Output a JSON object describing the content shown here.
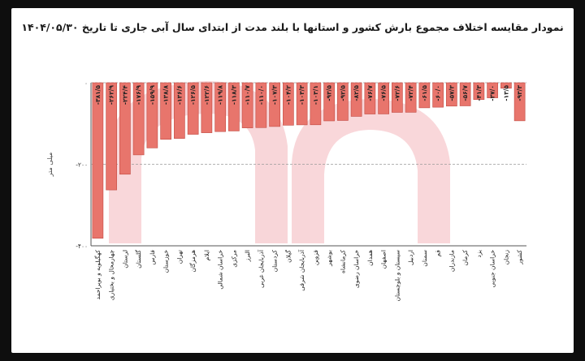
{
  "chart_data": {
    "type": "bar",
    "title": "نمودار مقایسه اختلاف مجموع بارش کشور و استانها با بلند مدت از ابتدای سال آبی جاری تا تاریخ ۱۴۰۴/۰۵/۳۰",
    "ylabel": "میلی متر",
    "ylim": [
      -400,
      0
    ],
    "yticks": [
      0,
      -200,
      -400
    ],
    "ytick_labels": [
      "۰",
      "-۲۰۰",
      "-۴۰۰"
    ],
    "categories": [
      "کهگیلویه و بویراحمد",
      "چهارمحال و بختیاری",
      "لرستان",
      "گلستان",
      "فارس",
      "خوزستان",
      "تهران",
      "هرمزگان",
      "ایلام",
      "خراسان شمالی",
      "مرکزی",
      "البرز",
      "آذربایجان غربی",
      "کردستان",
      "گیلان",
      "آذربایجان شرقی",
      "قزوین",
      "بوشهر",
      "کرمانشاه",
      "خراسان رضوی",
      "همدان",
      "اصفهان",
      "سیستان و بلوچستان",
      "اردبیل",
      "سمنان",
      "قم",
      "مازندران",
      "کرمان",
      "یزد",
      "خراسان جنوبی",
      "زنجان",
      "کشور"
    ],
    "values": [
      -381.5,
      -262.9,
      -224.4,
      -176.9,
      -159.9,
      -138.8,
      -136.6,
      -126.5,
      -122.6,
      -119.8,
      -118.3,
      -110.7,
      -110.0,
      -107.3,
      -104.2,
      -103.3,
      -103.1,
      -93.5,
      -92.5,
      -82.5,
      -76.7,
      -76.5,
      -72.6,
      -72.4,
      -61.5,
      -60.0,
      -57.3,
      -56.7,
      -41.3,
      -37.0,
      -13.5,
      -93.3
    ],
    "value_labels": [
      "-۳۸۱/۵",
      "-۲۶۲/۹",
      "-۲۲۴/۴",
      "-۱۷۶/۹",
      "-۱۵۹/۹",
      "-۱۳۸/۸",
      "-۱۳۶/۶",
      "-۱۲۶/۵",
      "-۱۲۲/۶",
      "-۱۱۹/۸",
      "-۱۱۸/۳",
      "-۱۱۰/۷",
      "-۱۱۰/۰",
      "-۱۰۷/۳",
      "-۱۰۴/۲",
      "-۱۰۳/۳",
      "-۱۰۳/۱",
      "-۹۳/۵",
      "-۹۲/۵",
      "-۸۲/۵",
      "-۷۶/۷",
      "-۷۶/۵",
      "-۷۲/۶",
      "-۷۲/۴",
      "-۶۱/۵",
      "-۶۰/۰",
      "-۵۷/۳",
      "-۵۶/۷",
      "-۴۱/۳",
      "-۳۷/۰",
      "-۱۳/۵",
      "-۹۳/۳"
    ],
    "bar_color": "#e8756c",
    "bar_stroke": "#c24a42",
    "grid": "dashed-horizontal"
  }
}
